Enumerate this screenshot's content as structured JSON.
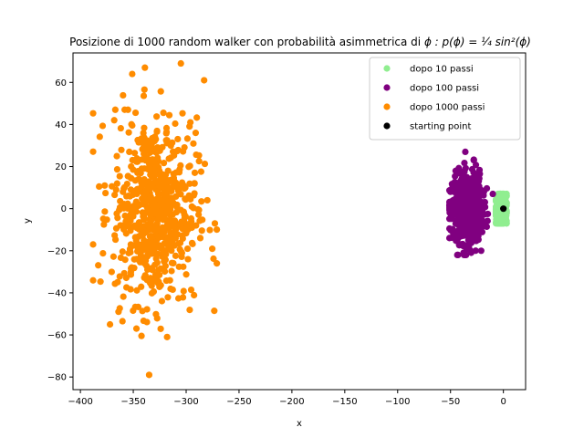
{
  "chart_data": {
    "type": "scatter",
    "title_prefix": "Posizione di 1000 random walker con probabilità asimmetrica di ",
    "title_math": "ϕ : p(ϕ) = ¼ sin²(ϕ)",
    "xlabel": "x",
    "ylabel": "y",
    "xlim": [
      -407,
      21
    ],
    "ylim": [
      -86,
      74
    ],
    "xticks": [
      -400,
      -350,
      -300,
      -250,
      -200,
      -150,
      -100,
      -50,
      0
    ],
    "xtick_labels": [
      "−400",
      "−350",
      "−300",
      "−250",
      "−200",
      "−150",
      "−100",
      "−50",
      "0"
    ],
    "yticks": [
      -80,
      -60,
      -40,
      -20,
      0,
      20,
      40,
      60
    ],
    "ytick_labels": [
      "−80",
      "−60",
      "−40",
      "−20",
      "0",
      "20",
      "40",
      "60"
    ],
    "grid": false,
    "legend_position": "top-right",
    "series": [
      {
        "name": "dopo 10 passi",
        "color": "#90ee90",
        "count": 1000,
        "center": [
          -2,
          0
        ],
        "spread": [
          2.5,
          3.5
        ],
        "x_range": [
          -7,
          3
        ],
        "y_range": [
          -7,
          7
        ],
        "extremes": [
          [
            -7,
            -1
          ],
          [
            3,
            6
          ],
          [
            -5,
            7
          ],
          [
            -2,
            -7
          ]
        ]
      },
      {
        "name": "dopo 100 passi",
        "color": "#800080",
        "count": 1000,
        "center": [
          -34,
          0
        ],
        "spread": [
          7,
          8
        ],
        "x_range": [
          -51,
          -10
        ],
        "y_range": [
          -22,
          27
        ],
        "extremes": [
          [
            -36,
            27
          ],
          [
            -28,
            23
          ],
          [
            -21,
            -20
          ],
          [
            -36,
            -22
          ],
          [
            -50,
            8
          ],
          [
            -10,
            7
          ]
        ]
      },
      {
        "name": "dopo 1000 passi",
        "color": "#ff8c00",
        "count": 1000,
        "center": [
          -330,
          -1
        ],
        "spread": [
          20,
          22
        ],
        "x_range": [
          -388,
          -271
        ],
        "y_range": [
          -79,
          69
        ],
        "extremes": [
          [
            -335,
            -79
          ],
          [
            -305,
            69
          ],
          [
            -388,
            -17
          ],
          [
            -271,
            -26
          ],
          [
            -283,
            61
          ],
          [
            -339,
            67
          ],
          [
            -351,
            64
          ],
          [
            -377,
            11
          ],
          [
            -280,
            4
          ],
          [
            -318,
            -61
          ],
          [
            -347,
            -57
          ],
          [
            -372,
            -55
          ],
          [
            -367,
            47
          ],
          [
            -355,
            47
          ],
          [
            -296,
            41
          ],
          [
            -291,
            36
          ]
        ]
      }
    ],
    "starting_point": {
      "name": "starting point",
      "color": "#000000",
      "x": 0,
      "y": 0
    }
  }
}
